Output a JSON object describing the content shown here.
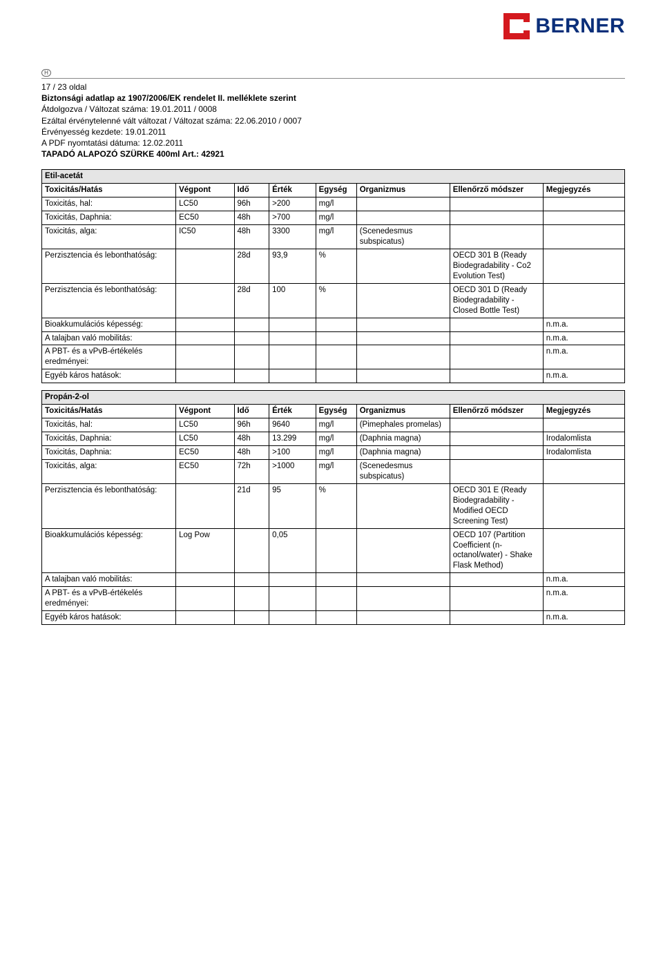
{
  "logo_text": "BERNER",
  "h_letter": "H",
  "header": {
    "page_of": "17 / 23 oldal",
    "line1": "Biztonsági adatlap az 1907/2006/EK rendelet II. melléklete szerint",
    "line2": "Átdolgozva / Változat száma: 19.01.2011 / 0008",
    "line3": "Ezáltal érvénytelenné vált változat / Változat száma: 22.06.2010  / 0007",
    "line4": "Érvényesség kezdete: 19.01.2011",
    "line5": "A PDF nyomtatási dátuma: 12.02.2011",
    "line6": "TAPADÓ ALAPOZÓ SZÜRKE 400ml Art.: 42921"
  },
  "columns": {
    "c0": "Toxicitás/Hatás",
    "c1": "Végpont",
    "c2": "Idő",
    "c3": "Érték",
    "c4": "Egység",
    "c5": "Organizmus",
    "c6": "Ellenőrző módszer",
    "c7": "Megjegyzés"
  },
  "table1": {
    "section": "Etil-acetát",
    "rows": [
      {
        "c0": "Toxicitás, hal:",
        "c1": "LC50",
        "c2": "96h",
        "c3": ">200",
        "c4": "mg/l",
        "c5": "",
        "c6": "",
        "c7": ""
      },
      {
        "c0": "Toxicitás, Daphnia:",
        "c1": "EC50",
        "c2": "48h",
        "c3": ">700",
        "c4": "mg/l",
        "c5": "",
        "c6": "",
        "c7": ""
      },
      {
        "c0": "Toxicitás, alga:",
        "c1": "IC50",
        "c2": "48h",
        "c3": "3300",
        "c4": "mg/l",
        "c5": "(Scenedesmus subspicatus)",
        "c6": "",
        "c7": ""
      },
      {
        "c0": "Perzisztencia és lebonthatóság:",
        "c1": "",
        "c2": "28d",
        "c3": "93,9",
        "c4": "%",
        "c5": "",
        "c6": "OECD 301 B (Ready Biodegradability - Co2 Evolution Test)",
        "c7": ""
      },
      {
        "c0": "Perzisztencia és lebonthatóság:",
        "c1": "",
        "c2": "28d",
        "c3": "100",
        "c4": "%",
        "c5": "",
        "c6": "OECD 301 D (Ready Biodegradability - Closed Bottle Test)",
        "c7": ""
      },
      {
        "c0": "Bioakkumulációs képesség:",
        "c1": "",
        "c2": "",
        "c3": "",
        "c4": "",
        "c5": "",
        "c6": "",
        "c7": "n.m.a."
      },
      {
        "c0": "A talajban való mobilitás:",
        "c1": "",
        "c2": "",
        "c3": "",
        "c4": "",
        "c5": "",
        "c6": "",
        "c7": "n.m.a."
      },
      {
        "c0": "A PBT- és a vPvB-értékelés eredményei:",
        "c1": "",
        "c2": "",
        "c3": "",
        "c4": "",
        "c5": "",
        "c6": "",
        "c7": "n.m.a."
      },
      {
        "c0": "Egyéb káros hatások:",
        "c1": "",
        "c2": "",
        "c3": "",
        "c4": "",
        "c5": "",
        "c6": "",
        "c7": "n.m.a."
      }
    ]
  },
  "table2": {
    "section": "Propán-2-ol",
    "rows": [
      {
        "c0": "Toxicitás, hal:",
        "c1": "LC50",
        "c2": "96h",
        "c3": "9640",
        "c4": "mg/l",
        "c5": "(Pimephales promelas)",
        "c6": "",
        "c7": ""
      },
      {
        "c0": "Toxicitás, Daphnia:",
        "c1": "LC50",
        "c2": "48h",
        "c3": "13.299",
        "c4": "mg/l",
        "c5": "(Daphnia magna)",
        "c6": "",
        "c7": "Irodalomlista"
      },
      {
        "c0": "Toxicitás, Daphnia:",
        "c1": "EC50",
        "c2": "48h",
        "c3": ">100",
        "c4": "mg/l",
        "c5": "(Daphnia magna)",
        "c6": "",
        "c7": "Irodalomlista"
      },
      {
        "c0": "Toxicitás, alga:",
        "c1": "EC50",
        "c2": "72h",
        "c3": ">1000",
        "c4": "mg/l",
        "c5": "(Scenedesmus subspicatus)",
        "c6": "",
        "c7": ""
      },
      {
        "c0": "Perzisztencia és lebonthatóság:",
        "c1": "",
        "c2": "21d",
        "c3": "95",
        "c4": "%",
        "c5": "",
        "c6": "OECD 301 E (Ready Biodegradability - Modified OECD Screening Test)",
        "c7": ""
      },
      {
        "c0": "Bioakkumulációs képesség:",
        "c1": "Log Pow",
        "c2": "",
        "c3": "0,05",
        "c4": "",
        "c5": "",
        "c6": "OECD 107 (Partition Coefficient (n-octanol/water) - Shake Flask Method)",
        "c7": ""
      },
      {
        "c0": "A talajban való mobilitás:",
        "c1": "",
        "c2": "",
        "c3": "",
        "c4": "",
        "c5": "",
        "c6": "",
        "c7": "n.m.a."
      },
      {
        "c0": "A PBT- és a vPvB-értékelés eredményei:",
        "c1": "",
        "c2": "",
        "c3": "",
        "c4": "",
        "c5": "",
        "c6": "",
        "c7": "n.m.a."
      },
      {
        "c0": "Egyéb káros hatások:",
        "c1": "",
        "c2": "",
        "c3": "",
        "c4": "",
        "c5": "",
        "c6": "",
        "c7": "n.m.a."
      }
    ]
  }
}
